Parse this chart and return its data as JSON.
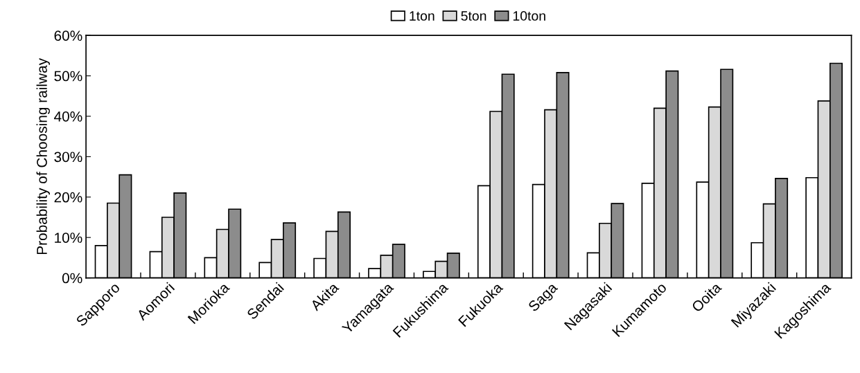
{
  "chart_data": {
    "type": "bar",
    "ylabel": "Probability of Choosing railway",
    "categories": [
      "Sapporo",
      "Aomori",
      "Morioka",
      "Sendai",
      "Akita",
      "Yamagata",
      "Fukushima",
      "Fukuoka",
      "Saga",
      "Nagasaki",
      "Kumamoto",
      "Ooita",
      "Miyazaki",
      "Kagoshima"
    ],
    "series": [
      {
        "name": "1ton",
        "color": "#ffffff",
        "values": [
          8.0,
          6.5,
          5.0,
          3.8,
          4.8,
          2.3,
          1.6,
          22.8,
          23.1,
          6.2,
          23.4,
          23.7,
          8.7,
          24.8
        ]
      },
      {
        "name": "5ton",
        "color": "#d9d9d9",
        "values": [
          18.5,
          15.0,
          12.0,
          9.5,
          11.5,
          5.6,
          4.1,
          41.2,
          41.6,
          13.5,
          42.0,
          42.3,
          18.3,
          43.8
        ]
      },
      {
        "name": "10ton",
        "color": "#8c8c8c",
        "values": [
          25.5,
          21.0,
          17.0,
          13.6,
          16.3,
          8.3,
          6.1,
          50.4,
          50.8,
          18.4,
          51.2,
          51.6,
          24.6,
          53.1
        ]
      }
    ],
    "ylim": [
      0,
      60
    ],
    "yticks": [
      {
        "value": 0,
        "label": "0%"
      },
      {
        "value": 10,
        "label": "10%"
      },
      {
        "value": 20,
        "label": "20%"
      },
      {
        "value": 30,
        "label": "30%"
      },
      {
        "value": 40,
        "label": "40%"
      },
      {
        "value": 50,
        "label": "50%"
      },
      {
        "value": 60,
        "label": "60%"
      }
    ],
    "legend": "top",
    "grid": false
  }
}
